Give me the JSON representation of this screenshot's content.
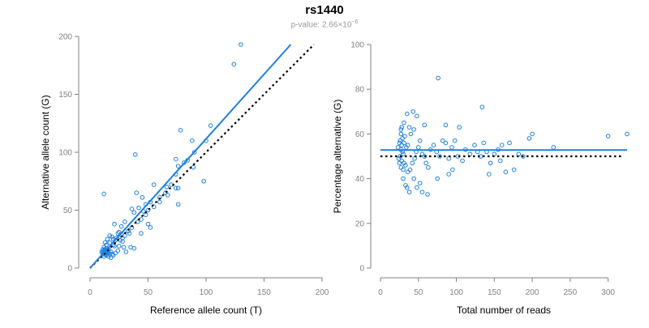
{
  "title": "rs1440",
  "pvalue": {
    "prefix": "p-value: 2.66",
    "times": "×",
    "base": "10",
    "exponent": "−6"
  },
  "colors": {
    "points": "#1f7fe0",
    "fit": "#1f7fe0",
    "reference": "#000000",
    "axis": "#808080"
  },
  "chart_data": [
    {
      "type": "scatter",
      "title": "",
      "xlabel": "Reference allele count (T)",
      "ylabel": "Alternative allele count (G)",
      "xlim": [
        0,
        200
      ],
      "ylim": [
        0,
        200
      ],
      "xticks": [
        0,
        50,
        100,
        150,
        200
      ],
      "yticks": [
        0,
        50,
        100,
        150,
        200
      ],
      "fit_line": {
        "name": "fit",
        "style": "solid",
        "x": [
          0,
          173
        ],
        "y": [
          0,
          193
        ]
      },
      "reference_line": {
        "name": "equal counts",
        "style": "dotted",
        "x": [
          0,
          193
        ],
        "y": [
          0,
          193
        ]
      },
      "points": [
        [
          130,
          193
        ],
        [
          124,
          176
        ],
        [
          12,
          64
        ],
        [
          39,
          98
        ],
        [
          78,
          119
        ],
        [
          104,
          123
        ],
        [
          88,
          110
        ],
        [
          100,
          110
        ],
        [
          74,
          94
        ],
        [
          81,
          91
        ],
        [
          76,
          88
        ],
        [
          89,
          87
        ],
        [
          98,
          75
        ],
        [
          74,
          81
        ],
        [
          55,
          72
        ],
        [
          40,
          65
        ],
        [
          45,
          61
        ],
        [
          65,
          65
        ],
        [
          67,
          63
        ],
        [
          74,
          69
        ],
        [
          76,
          69
        ],
        [
          60,
          57
        ],
        [
          52,
          57
        ],
        [
          48,
          55
        ],
        [
          42,
          52
        ],
        [
          36,
          51
        ],
        [
          38,
          48
        ],
        [
          46,
          49
        ],
        [
          76,
          55
        ],
        [
          21,
          38
        ],
        [
          27,
          36
        ],
        [
          30,
          40
        ],
        [
          33,
          32
        ],
        [
          41,
          40
        ],
        [
          50,
          38
        ],
        [
          52,
          35
        ],
        [
          44,
          30
        ],
        [
          34,
          30
        ],
        [
          25,
          31
        ],
        [
          27,
          29
        ],
        [
          19,
          27
        ],
        [
          20,
          25
        ],
        [
          23,
          26
        ],
        [
          15,
          25
        ],
        [
          17,
          28
        ],
        [
          13,
          22
        ],
        [
          12,
          18
        ],
        [
          14,
          20
        ],
        [
          17,
          22
        ],
        [
          13,
          15
        ],
        [
          10,
          14
        ],
        [
          11,
          12
        ],
        [
          12,
          10
        ],
        [
          14,
          11
        ],
        [
          15,
          13
        ],
        [
          16,
          16
        ],
        [
          18,
          14
        ],
        [
          19,
          12
        ],
        [
          20,
          11
        ],
        [
          22,
          13
        ],
        [
          24,
          15
        ],
        [
          21,
          19
        ],
        [
          25,
          19
        ],
        [
          28,
          23
        ],
        [
          29,
          18
        ],
        [
          31,
          14
        ],
        [
          16,
          10
        ],
        [
          18,
          9
        ],
        [
          11,
          16
        ],
        [
          12,
          13
        ],
        [
          13,
          16
        ],
        [
          14,
          17
        ],
        [
          15,
          15
        ],
        [
          13,
          13
        ],
        [
          12,
          15
        ],
        [
          16,
          14
        ],
        [
          17,
          12
        ],
        [
          14,
          13
        ],
        [
          11,
          14
        ],
        [
          13,
          12
        ],
        [
          15,
          16
        ],
        [
          12,
          14
        ],
        [
          14,
          15
        ],
        [
          24,
          30
        ],
        [
          26,
          24
        ],
        [
          20,
          20
        ],
        [
          22,
          24
        ],
        [
          35,
          18
        ],
        [
          38,
          17
        ],
        [
          28,
          26
        ],
        [
          30,
          28
        ],
        [
          36,
          35
        ],
        [
          44,
          42
        ],
        [
          48,
          46
        ],
        [
          50,
          50
        ],
        [
          55,
          53
        ],
        [
          60,
          61
        ],
        [
          66,
          70
        ],
        [
          70,
          72
        ],
        [
          84,
          93
        ],
        [
          90,
          100
        ]
      ]
    },
    {
      "type": "scatter",
      "title": "",
      "xlabel": "Total number of reads",
      "ylabel": "Percentage alternative (G)",
      "xlim": [
        0,
        325
      ],
      "ylim": [
        0,
        100
      ],
      "xticks": [
        0,
        50,
        100,
        150,
        200,
        250,
        300
      ],
      "yticks": [
        0,
        20,
        40,
        60,
        80,
        100
      ],
      "fit_line": {
        "name": "fit",
        "style": "solid",
        "x": [
          0,
          325
        ],
        "y": [
          52.8,
          52.8
        ]
      },
      "reference_line": {
        "name": "50 percent",
        "style": "dotted",
        "x": [
          0,
          320
        ],
        "y": [
          50,
          50
        ]
      },
      "points": [
        [
          76,
          85
        ],
        [
          134,
          72
        ],
        [
          43,
          70
        ],
        [
          35,
          69
        ],
        [
          48,
          68
        ],
        [
          58,
          64
        ],
        [
          86,
          64
        ],
        [
          104,
          63
        ],
        [
          38,
          63
        ],
        [
          44,
          62
        ],
        [
          40,
          60
        ],
        [
          27,
          60
        ],
        [
          29,
          58
        ],
        [
          32,
          59
        ],
        [
          26,
          57
        ],
        [
          25,
          56
        ],
        [
          28,
          55
        ],
        [
          31,
          56
        ],
        [
          34,
          54
        ],
        [
          36,
          55
        ],
        [
          23,
          54
        ],
        [
          27,
          53
        ],
        [
          29,
          52
        ],
        [
          30,
          51
        ],
        [
          26,
          50
        ],
        [
          24,
          49
        ],
        [
          28,
          48
        ],
        [
          31,
          47
        ],
        [
          33,
          46
        ],
        [
          25,
          47
        ],
        [
          27,
          45
        ],
        [
          30,
          44
        ],
        [
          36,
          43
        ],
        [
          39,
          44
        ],
        [
          42,
          47
        ],
        [
          45,
          49
        ],
        [
          47,
          52
        ],
        [
          50,
          54
        ],
        [
          52,
          57
        ],
        [
          55,
          51
        ],
        [
          58,
          50
        ],
        [
          60,
          47
        ],
        [
          63,
          45
        ],
        [
          66,
          53
        ],
        [
          70,
          55
        ],
        [
          74,
          52
        ],
        [
          78,
          50
        ],
        [
          82,
          57
        ],
        [
          86,
          56
        ],
        [
          90,
          49
        ],
        [
          94,
          54
        ],
        [
          98,
          57
        ],
        [
          102,
          50
        ],
        [
          108,
          48
        ],
        [
          112,
          53
        ],
        [
          118,
          51
        ],
        [
          124,
          55
        ],
        [
          128,
          52
        ],
        [
          132,
          50
        ],
        [
          136,
          56
        ],
        [
          140,
          52
        ],
        [
          145,
          47
        ],
        [
          150,
          51
        ],
        [
          155,
          53
        ],
        [
          160,
          55
        ],
        [
          165,
          43
        ],
        [
          170,
          56
        ],
        [
          176,
          44
        ],
        [
          182,
          51
        ],
        [
          188,
          50
        ],
        [
          196,
          58
        ],
        [
          200,
          60
        ],
        [
          228,
          54
        ],
        [
          300,
          59
        ],
        [
          325,
          60
        ],
        [
          62,
          33
        ],
        [
          55,
          34
        ],
        [
          38,
          34
        ],
        [
          35,
          36
        ],
        [
          33,
          37
        ],
        [
          30,
          40
        ],
        [
          44,
          40
        ],
        [
          48,
          36
        ],
        [
          52,
          38
        ],
        [
          75,
          40
        ],
        [
          90,
          42
        ],
        [
          95,
          44
        ],
        [
          143,
          42
        ],
        [
          158,
          48
        ],
        [
          27,
          62
        ],
        [
          28,
          63
        ],
        [
          31,
          65
        ]
      ]
    }
  ]
}
